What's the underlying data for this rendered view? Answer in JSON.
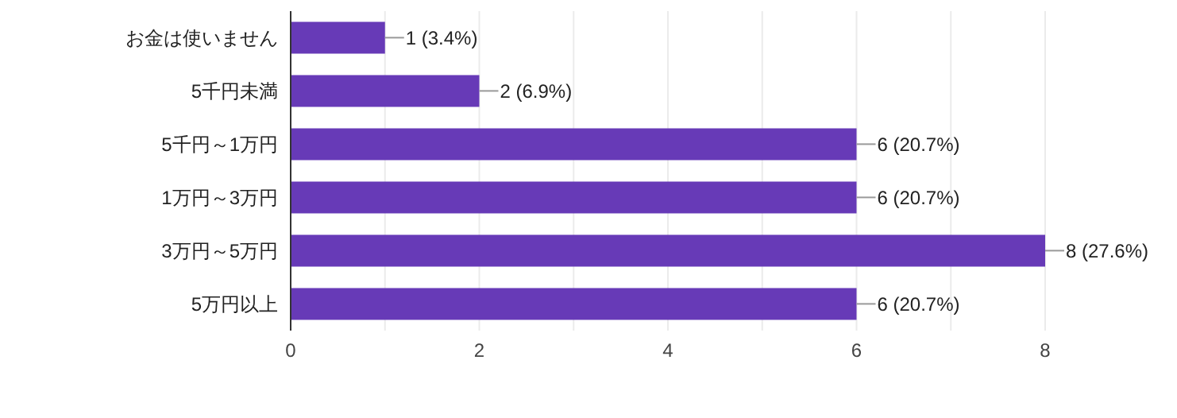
{
  "chart_data": {
    "type": "bar",
    "orientation": "horizontal",
    "categories": [
      "お金は使いません",
      "5千円未満",
      "5千円～1万円",
      "1万円～3万円",
      "3万円～5万円",
      "5万円以上"
    ],
    "values": [
      1,
      2,
      6,
      6,
      8,
      6
    ],
    "value_labels": [
      "1 (3.4%)",
      "2 (6.9%)",
      "6 (20.7%)",
      "6 (20.7%)",
      "8 (27.6%)",
      "6 (20.7%)"
    ],
    "color": "#673ab7",
    "xlim": [
      0,
      8
    ],
    "xticks": [
      0,
      {
        "value": 1,
        "label": null
      },
      2,
      {
        "value": 3,
        "label": null
      },
      4,
      {
        "value": 5,
        "label": null
      },
      6,
      {
        "value": 7,
        "label": null
      },
      8
    ],
    "grid": "x"
  }
}
